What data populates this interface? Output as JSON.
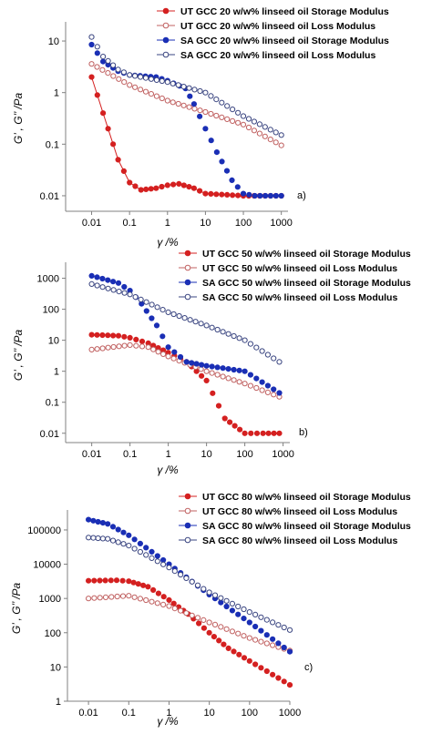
{
  "chart_data": [
    {
      "type": "line",
      "panel_label": "a)",
      "xlabel": "γ /%",
      "ylabel": "G’ , G’’ /Pa",
      "x_scale": "log",
      "y_scale": "log",
      "xlim": [
        0.005,
        1500
      ],
      "ylim": [
        0.005,
        20
      ],
      "x_ticks": [
        0.01,
        0.1,
        1,
        10,
        100,
        1000
      ],
      "x_tick_labels": [
        "0.01",
        "0.1",
        "1",
        "10",
        "100",
        "1000"
      ],
      "y_ticks": [
        0.01,
        0.1,
        1,
        10
      ],
      "y_tick_labels": [
        "0.01",
        "0.1",
        "1",
        "10"
      ],
      "legend_position": "top-right",
      "series": [
        {
          "name": "UT GCC 20 w/w% linseed oil Storage Modulus",
          "color": "#d42020",
          "filled": true,
          "connect_line": true,
          "x": [
            0.01,
            0.02,
            0.05,
            0.1,
            0.2,
            0.5,
            1,
            2,
            5,
            10,
            100,
            1000
          ],
          "y": [
            2,
            0.4,
            0.05,
            0.018,
            0.013,
            0.014,
            0.016,
            0.017,
            0.014,
            0.011,
            0.01,
            0.01
          ]
        },
        {
          "name": "UT GCC 20 w/w% linseed oil Loss Modulus",
          "color": "#c06060",
          "filled": false,
          "connect_line": false,
          "x": [
            0.01,
            0.1,
            1,
            10,
            100,
            1000
          ],
          "y": [
            3.6,
            1.4,
            0.7,
            0.42,
            0.24,
            0.095
          ]
        },
        {
          "name": "SA GCC 20 w/w% linseed oil Storage Modulus",
          "color": "#1a2fb5",
          "filled": true,
          "connect_line": false,
          "x": [
            0.01,
            0.02,
            0.05,
            0.1,
            0.5,
            1,
            3,
            5,
            10,
            20,
            50,
            100,
            200,
            1000
          ],
          "y": [
            8.5,
            4,
            2.6,
            2.2,
            2,
            1.7,
            1.2,
            0.6,
            0.2,
            0.07,
            0.02,
            0.011,
            0.01,
            0.01
          ]
        },
        {
          "name": "SA GCC 20 w/w% linseed oil Loss Modulus",
          "color": "#3a4580",
          "filled": false,
          "connect_line": false,
          "x": [
            0.01,
            0.02,
            0.05,
            0.1,
            1,
            10,
            100,
            1000
          ],
          "y": [
            12,
            5,
            2.8,
            2.2,
            1.6,
            1,
            0.35,
            0.15
          ]
        }
      ]
    },
    {
      "type": "line",
      "panel_label": "b)",
      "xlabel": "γ /%",
      "ylabel": "G’ , G’’ /Pa",
      "x_scale": "log",
      "y_scale": "log",
      "xlim": [
        0.005,
        1500
      ],
      "ylim": [
        0.005,
        2500
      ],
      "x_ticks": [
        0.01,
        0.1,
        1,
        10,
        100,
        1000
      ],
      "x_tick_labels": [
        "0.01",
        "0.1",
        "1",
        "10",
        "100",
        "1000"
      ],
      "y_ticks": [
        0.01,
        0.1,
        1,
        10,
        100,
        1000
      ],
      "y_tick_labels": [
        "0.01",
        "0.1",
        "1",
        "10",
        "100",
        "1000"
      ],
      "legend_position": "top-right",
      "series": [
        {
          "name": "UT GCC 50 w/w% linseed oil Storage Modulus",
          "color": "#d42020",
          "filled": true,
          "connect_line": false,
          "x": [
            0.01,
            0.05,
            0.1,
            0.3,
            1,
            3,
            10,
            30,
            100,
            300,
            800
          ],
          "y": [
            15,
            14,
            12,
            8,
            4,
            2,
            0.5,
            0.03,
            0.01,
            0.01,
            0.01
          ]
        },
        {
          "name": "UT GCC 50 w/w% linseed oil Loss Modulus",
          "color": "#c06060",
          "filled": false,
          "connect_line": false,
          "x": [
            0.01,
            0.1,
            0.3,
            1,
            10,
            100,
            800
          ],
          "y": [
            5,
            7,
            6,
            3,
            1,
            0.4,
            0.15
          ]
        },
        {
          "name": "SA GCC 50 w/w% linseed oil Storage Modulus",
          "color": "#1a2fb5",
          "filled": true,
          "connect_line": false,
          "x": [
            0.01,
            0.05,
            0.1,
            0.2,
            0.5,
            1,
            3,
            10,
            100,
            800
          ],
          "y": [
            1200,
            700,
            400,
            150,
            30,
            6,
            2,
            1.5,
            1,
            0.2
          ]
        },
        {
          "name": "SA GCC 50 w/w% linseed oil Loss Modulus",
          "color": "#3a4580",
          "filled": false,
          "connect_line": false,
          "x": [
            0.01,
            0.1,
            1,
            10,
            100,
            800
          ],
          "y": [
            650,
            300,
            80,
            30,
            10,
            2
          ]
        }
      ]
    },
    {
      "type": "line",
      "panel_label": "c)",
      "xlabel": "γ /%",
      "ylabel": "G’ , G’’ /Pa",
      "x_scale": "log",
      "y_scale": "log",
      "xlim": [
        0.003,
        1000
      ],
      "ylim": [
        1,
        300000
      ],
      "x_ticks": [
        0.01,
        0.1,
        1,
        10,
        100,
        1000
      ],
      "x_tick_labels": [
        "0.01",
        "0.1",
        "1",
        "10",
        "100",
        "1000"
      ],
      "y_ticks": [
        1,
        10,
        100,
        1000,
        10000,
        100000
      ],
      "y_tick_labels": [
        "1",
        "10",
        "100",
        "1000",
        "10000",
        "100000"
      ],
      "legend_position": "top-right",
      "series": [
        {
          "name": "UT GCC 80 w/w% linseed oil Storage Modulus",
          "color": "#d42020",
          "filled": true,
          "connect_line": false,
          "x": [
            0.01,
            0.05,
            0.1,
            0.3,
            1,
            3,
            10,
            30,
            100,
            1000
          ],
          "y": [
            3300,
            3400,
            3200,
            2200,
            900,
            350,
            100,
            35,
            15,
            3
          ]
        },
        {
          "name": "UT GCC 80 w/w% linseed oil Loss Modulus",
          "color": "#c06060",
          "filled": false,
          "connect_line": false,
          "x": [
            0.01,
            0.1,
            1,
            10,
            100,
            1000
          ],
          "y": [
            1000,
            1200,
            600,
            200,
            70,
            30
          ]
        },
        {
          "name": "SA GCC 80 w/w% linseed oil Storage Modulus",
          "color": "#1a2fb5",
          "filled": true,
          "connect_line": false,
          "x": [
            0.01,
            0.03,
            0.1,
            1,
            10,
            100,
            1000
          ],
          "y": [
            200000,
            150000,
            70000,
            10000,
            1300,
            200,
            28
          ]
        },
        {
          "name": "SA GCC 80 w/w% linseed oil Loss Modulus",
          "color": "#3a4580",
          "filled": false,
          "connect_line": false,
          "x": [
            0.01,
            0.03,
            0.1,
            1,
            10,
            100,
            1000
          ],
          "y": [
            60000,
            55000,
            35000,
            8000,
            1500,
            400,
            120
          ]
        }
      ]
    }
  ]
}
